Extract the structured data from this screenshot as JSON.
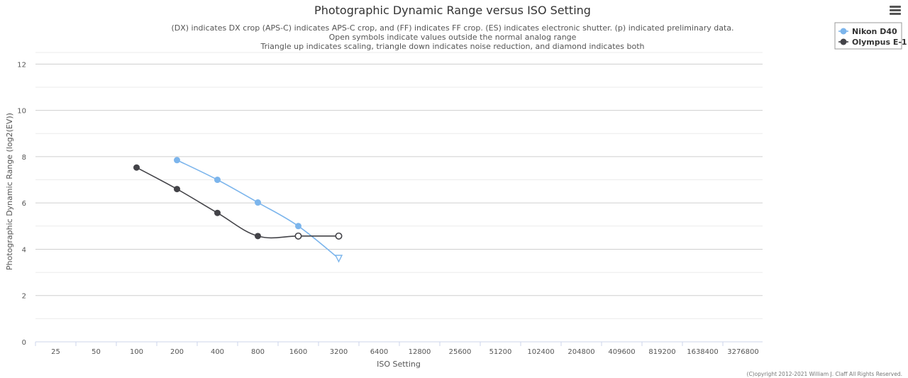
{
  "chart_data": {
    "type": "line",
    "title": "Photographic Dynamic Range versus ISO Setting",
    "subtitle": [
      "(DX) indicates DX crop (APS-C) indicates APS-C crop, and (FF) indicates FF crop. (ES) indicates electronic shutter. (p) indicated preliminary data.",
      "Open symbols indicate values outside the normal analog range",
      "Triangle up indicates scaling, triangle down indicates noise reduction, and diamond indicates both"
    ],
    "xlabel": "ISO Setting",
    "ylabel": "Photographic Dynamic Range (log2(EV))",
    "x_scale": "log2",
    "categories": [
      "25",
      "50",
      "100",
      "200",
      "400",
      "800",
      "1600",
      "3200",
      "6400",
      "12800",
      "25600",
      "51200",
      "102400",
      "204800",
      "409600",
      "819200",
      "1638400",
      "3276800"
    ],
    "yticks": [
      "0",
      "2",
      "4",
      "6",
      "8",
      "10",
      "12"
    ],
    "ylim": [
      0,
      12.5
    ],
    "grid": true,
    "legend_position": "top-right",
    "series": [
      {
        "name": "Nikon D40",
        "color": "#7cb5ec",
        "points": [
          {
            "x": 200,
            "y": 7.85,
            "marker": "circle"
          },
          {
            "x": 400,
            "y": 7.0,
            "marker": "circle"
          },
          {
            "x": 800,
            "y": 6.02,
            "marker": "circle"
          },
          {
            "x": 1600,
            "y": 5.0,
            "marker": "circle"
          },
          {
            "x": 3200,
            "y": 3.6,
            "marker": "triangle-down-open"
          }
        ]
      },
      {
        "name": "Olympus E-1",
        "color": "#434348",
        "points": [
          {
            "x": 100,
            "y": 7.53,
            "marker": "circle"
          },
          {
            "x": 200,
            "y": 6.6,
            "marker": "circle"
          },
          {
            "x": 400,
            "y": 5.57,
            "marker": "circle"
          },
          {
            "x": 800,
            "y": 4.57,
            "marker": "circle"
          },
          {
            "x": 1600,
            "y": 4.57,
            "marker": "circle-open"
          },
          {
            "x": 3200,
            "y": 4.57,
            "marker": "circle-open"
          }
        ]
      }
    ],
    "credits": "(C)opyright 2012-2021 William J. Claff All Rights Reserved."
  },
  "menu": {
    "icon": "hamburger-menu-icon"
  }
}
